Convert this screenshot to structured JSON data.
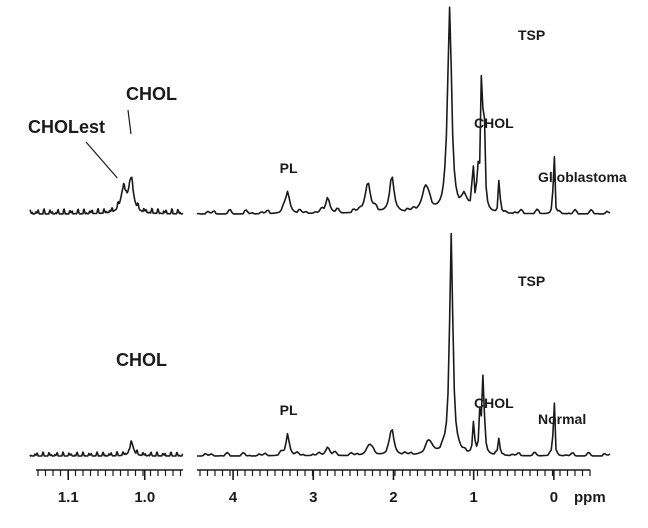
{
  "chart_data": [
    {
      "type": "line",
      "title": "",
      "xlabel": "ppm",
      "ylabel": "",
      "inset": {
        "xlim": [
          1.15,
          0.95
        ],
        "ticks": [
          "1.1",
          "1.0"
        ],
        "tick_values": [
          1.1,
          1.0
        ]
      },
      "main": {
        "xlim": [
          4.45,
          -0.7
        ],
        "ticks": [
          "4",
          "3",
          "2",
          "1",
          "0"
        ],
        "tick_values": [
          4,
          3,
          2,
          1,
          0
        ]
      },
      "series": [
        {
          "name": "Glioblastoma",
          "inset_peaks": [
            {
              "ppm": 1.028,
              "height": 0.55,
              "width": 0.004,
              "label": "CHOLest"
            },
            {
              "ppm": 1.018,
              "height": 0.78,
              "width": 0.004,
              "label": "CHOL"
            }
          ],
          "peaks": [
            {
              "ppm": 3.32,
              "height": 0.11,
              "width": 0.03,
              "label": "PL"
            },
            {
              "ppm": 2.82,
              "height": 0.08,
              "width": 0.03
            },
            {
              "ppm": 2.32,
              "height": 0.15,
              "width": 0.04
            },
            {
              "ppm": 2.02,
              "height": 0.16,
              "width": 0.035
            },
            {
              "ppm": 1.6,
              "height": 0.13,
              "width": 0.05
            },
            {
              "ppm": 1.3,
              "height": 1.0,
              "width": 0.03
            },
            {
              "ppm": 1.12,
              "height": 0.07,
              "width": 0.03
            },
            {
              "ppm": 1.01,
              "height": 0.25,
              "width": 0.012
            },
            {
              "ppm": 0.95,
              "height": 0.2,
              "width": 0.012
            },
            {
              "ppm": 0.9,
              "height": 0.65,
              "width": 0.015
            },
            {
              "ppm": 0.87,
              "height": 0.4,
              "width": 0.012
            },
            {
              "ppm": 0.68,
              "height": 0.3,
              "width": 0.006,
              "label": "CHOL"
            },
            {
              "ppm": 0.0,
              "height": 0.75,
              "width": 0.005,
              "label": "TSP"
            }
          ]
        },
        {
          "name": "Normal",
          "inset_peaks": [
            {
              "ppm": 1.017,
              "height": 0.28,
              "width": 0.003,
              "label": "CHOL"
            }
          ],
          "peaks": [
            {
              "ppm": 3.32,
              "height": 0.1,
              "width": 0.025,
              "label": "PL"
            },
            {
              "ppm": 2.82,
              "height": 0.04,
              "width": 0.03
            },
            {
              "ppm": 2.3,
              "height": 0.05,
              "width": 0.04
            },
            {
              "ppm": 2.02,
              "height": 0.12,
              "width": 0.03
            },
            {
              "ppm": 1.55,
              "height": 0.06,
              "width": 0.05
            },
            {
              "ppm": 1.28,
              "height": 1.0,
              "width": 0.025
            },
            {
              "ppm": 1.0,
              "height": 0.15,
              "width": 0.012
            },
            {
              "ppm": 0.92,
              "height": 0.18,
              "width": 0.012
            },
            {
              "ppm": 0.88,
              "height": 0.37,
              "width": 0.014
            },
            {
              "ppm": 0.68,
              "height": 0.15,
              "width": 0.006,
              "label": "CHOL"
            },
            {
              "ppm": 0.0,
              "height": 0.66,
              "width": 0.005,
              "label": "TSP"
            }
          ]
        }
      ]
    }
  ]
}
